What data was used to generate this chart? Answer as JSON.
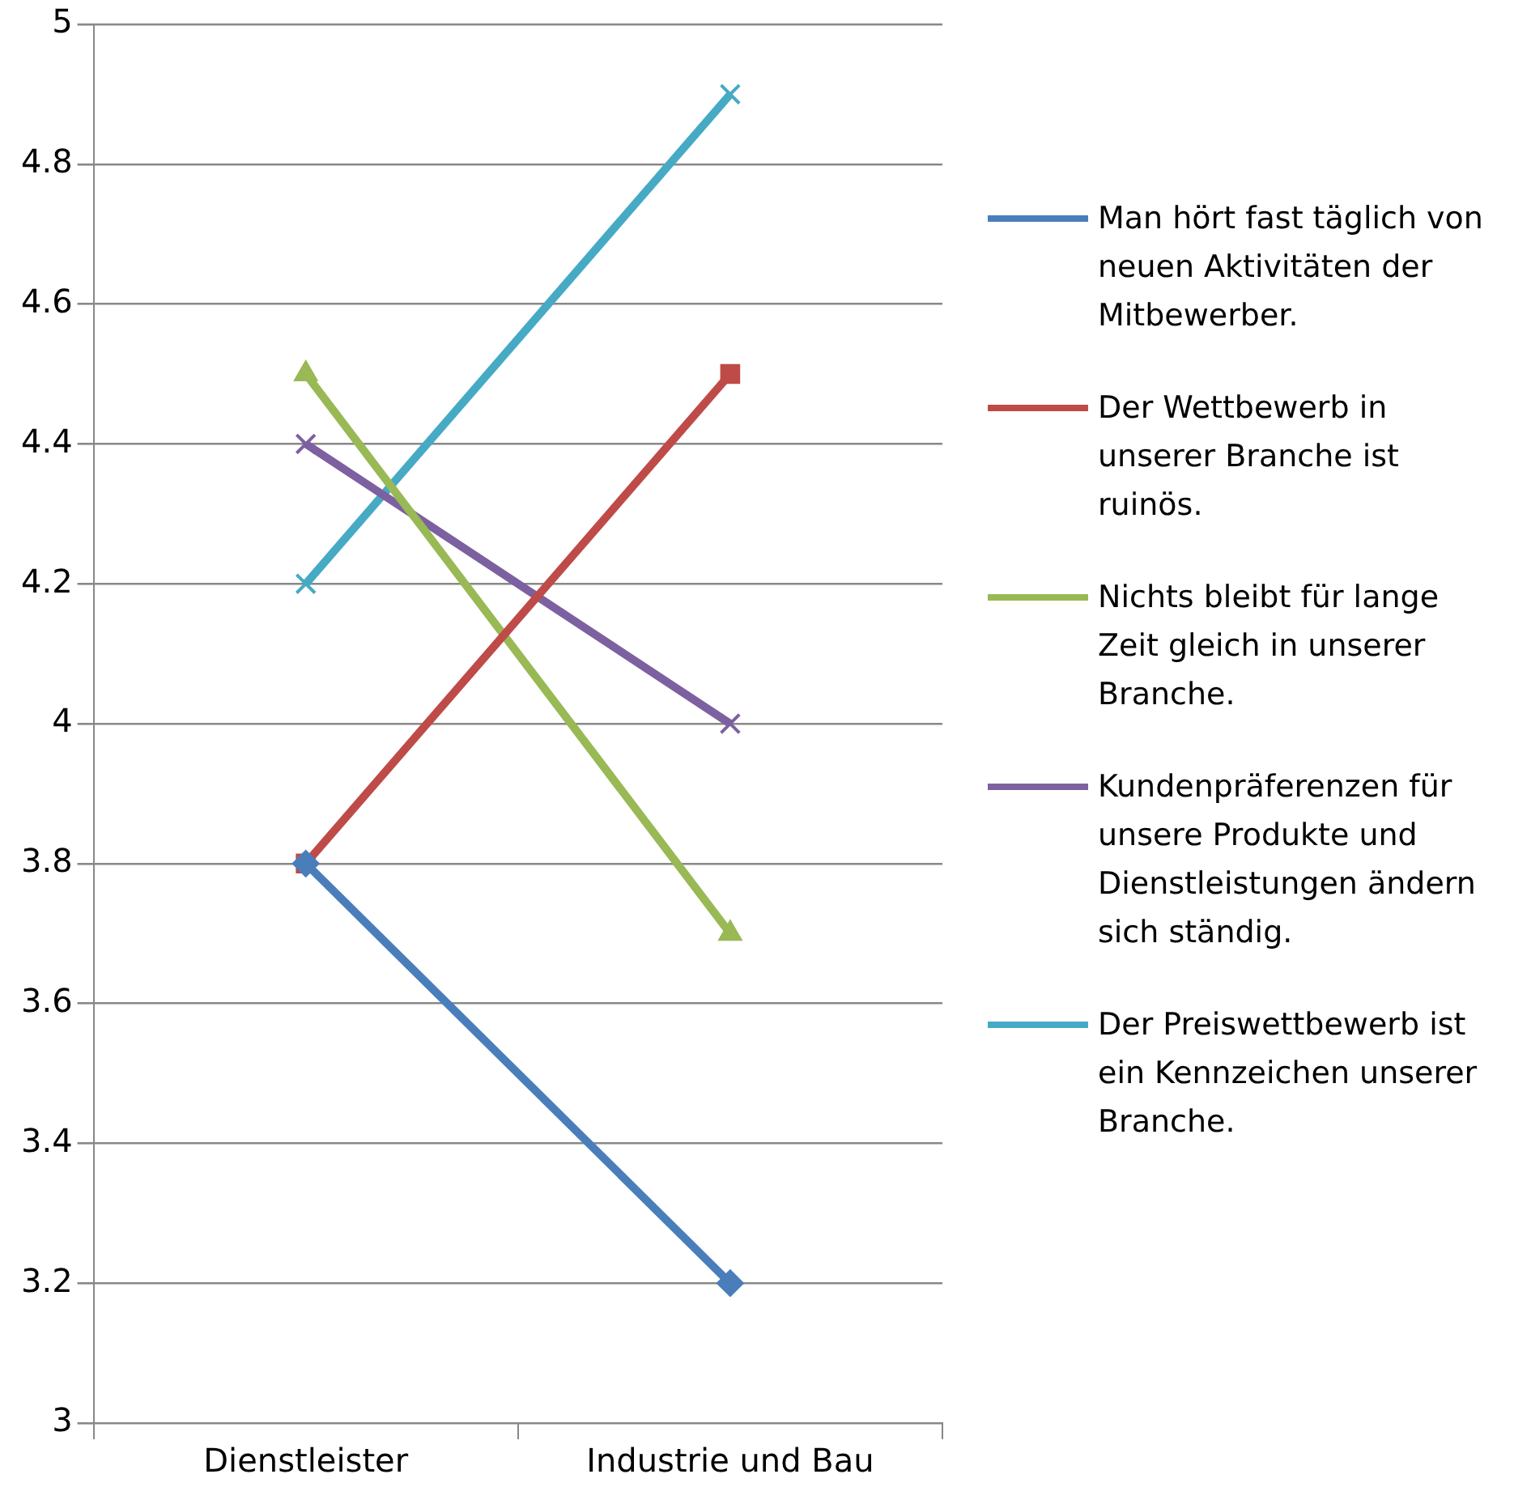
{
  "chart_data": {
    "type": "line",
    "categories": [
      "Dienstleister",
      "Industrie und Bau"
    ],
    "series": [
      {
        "name": "Man hört fast täglich von neuen Aktivitäten der Mitbewerber.",
        "color": "#4a7ebb",
        "marker": "diamond",
        "values": [
          3.8,
          3.2
        ]
      },
      {
        "name": "Der Wettbewerb in unserer Branche ist ruinös.",
        "color": "#be4b48",
        "marker": "square",
        "values": [
          3.8,
          4.5
        ]
      },
      {
        "name": "Nichts bleibt für lange Zeit gleich in unserer Branche.",
        "color": "#98b954",
        "marker": "triangle",
        "values": [
          4.5,
          3.7
        ]
      },
      {
        "name": "Kundenpräferenzen für unsere Produkte und Dienstleistungen ändern sich ständig.",
        "color": "#7d60a0",
        "marker": "cross",
        "values": [
          4.4,
          4.0
        ]
      },
      {
        "name": "Der Preiswettbewerb ist ein Kennzeichen unserer Branche.",
        "color": "#46aac5",
        "marker": "cross",
        "values": [
          4.2,
          4.9
        ]
      }
    ],
    "ylim": [
      3,
      5
    ],
    "yticks": [
      3,
      3.2,
      3.4,
      3.6,
      3.8,
      4,
      4.2,
      4.4,
      4.6,
      4.8,
      5
    ],
    "grid": "y",
    "legend": "right"
  }
}
